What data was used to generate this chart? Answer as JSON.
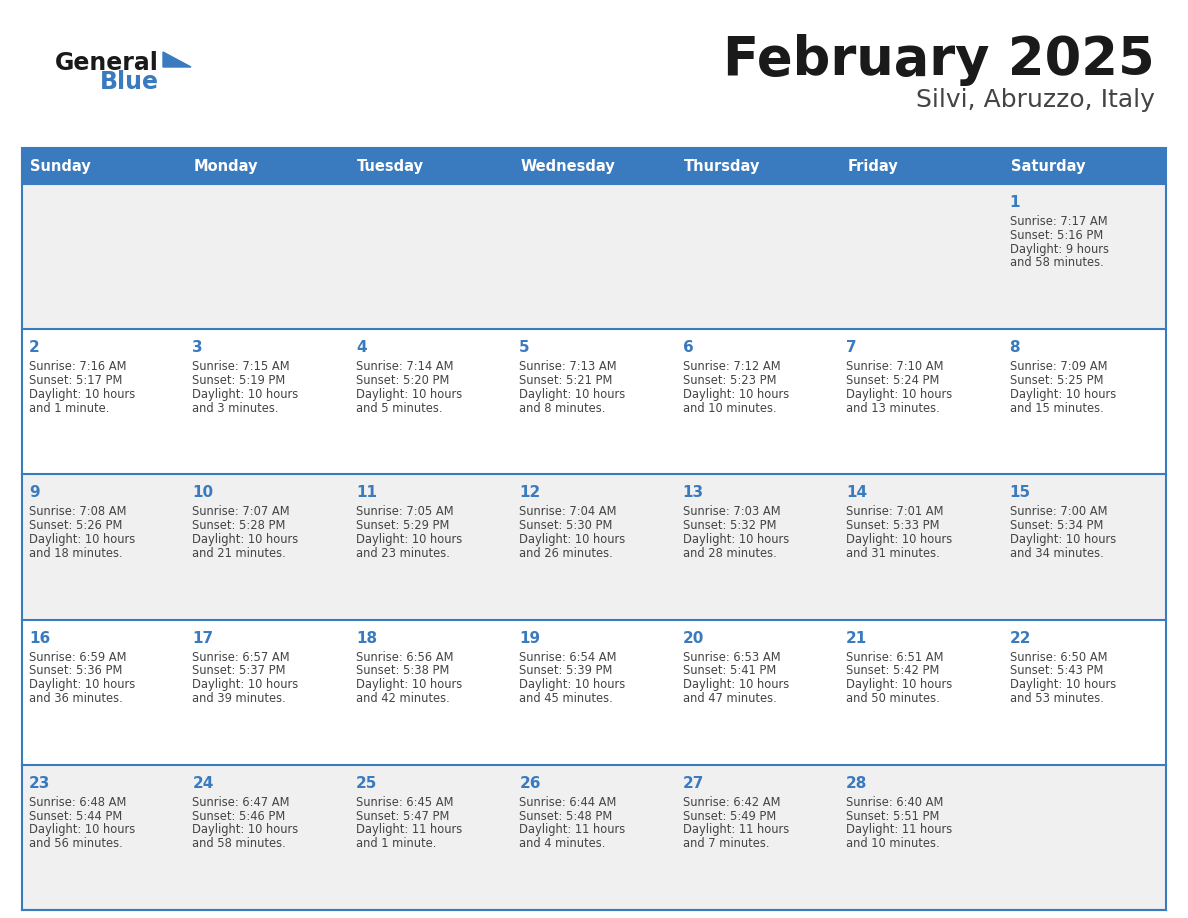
{
  "title": "February 2025",
  "subtitle": "Silvi, Abruzzo, Italy",
  "days_of_week": [
    "Sunday",
    "Monday",
    "Tuesday",
    "Wednesday",
    "Thursday",
    "Friday",
    "Saturday"
  ],
  "header_bg": "#3a7abf",
  "header_text_color": "#ffffff",
  "cell_border_color": "#3a7abf",
  "day_num_color": "#3a7abf",
  "cell_text_color": "#444444",
  "title_color": "#1a1a1a",
  "subtitle_color": "#444444",
  "logo_general_color": "#1a1a1a",
  "logo_blue_color": "#3a7abf",
  "row_bg_odd": "#f0f0f0",
  "row_bg_even": "#ffffff",
  "calendar_data": [
    [
      null,
      null,
      null,
      null,
      null,
      null,
      {
        "day": 1,
        "lines": [
          "Sunrise: 7:17 AM",
          "Sunset: 5:16 PM",
          "Daylight: 9 hours",
          "and 58 minutes."
        ]
      }
    ],
    [
      {
        "day": 2,
        "lines": [
          "Sunrise: 7:16 AM",
          "Sunset: 5:17 PM",
          "Daylight: 10 hours",
          "and 1 minute."
        ]
      },
      {
        "day": 3,
        "lines": [
          "Sunrise: 7:15 AM",
          "Sunset: 5:19 PM",
          "Daylight: 10 hours",
          "and 3 minutes."
        ]
      },
      {
        "day": 4,
        "lines": [
          "Sunrise: 7:14 AM",
          "Sunset: 5:20 PM",
          "Daylight: 10 hours",
          "and 5 minutes."
        ]
      },
      {
        "day": 5,
        "lines": [
          "Sunrise: 7:13 AM",
          "Sunset: 5:21 PM",
          "Daylight: 10 hours",
          "and 8 minutes."
        ]
      },
      {
        "day": 6,
        "lines": [
          "Sunrise: 7:12 AM",
          "Sunset: 5:23 PM",
          "Daylight: 10 hours",
          "and 10 minutes."
        ]
      },
      {
        "day": 7,
        "lines": [
          "Sunrise: 7:10 AM",
          "Sunset: 5:24 PM",
          "Daylight: 10 hours",
          "and 13 minutes."
        ]
      },
      {
        "day": 8,
        "lines": [
          "Sunrise: 7:09 AM",
          "Sunset: 5:25 PM",
          "Daylight: 10 hours",
          "and 15 minutes."
        ]
      }
    ],
    [
      {
        "day": 9,
        "lines": [
          "Sunrise: 7:08 AM",
          "Sunset: 5:26 PM",
          "Daylight: 10 hours",
          "and 18 minutes."
        ]
      },
      {
        "day": 10,
        "lines": [
          "Sunrise: 7:07 AM",
          "Sunset: 5:28 PM",
          "Daylight: 10 hours",
          "and 21 minutes."
        ]
      },
      {
        "day": 11,
        "lines": [
          "Sunrise: 7:05 AM",
          "Sunset: 5:29 PM",
          "Daylight: 10 hours",
          "and 23 minutes."
        ]
      },
      {
        "day": 12,
        "lines": [
          "Sunrise: 7:04 AM",
          "Sunset: 5:30 PM",
          "Daylight: 10 hours",
          "and 26 minutes."
        ]
      },
      {
        "day": 13,
        "lines": [
          "Sunrise: 7:03 AM",
          "Sunset: 5:32 PM",
          "Daylight: 10 hours",
          "and 28 minutes."
        ]
      },
      {
        "day": 14,
        "lines": [
          "Sunrise: 7:01 AM",
          "Sunset: 5:33 PM",
          "Daylight: 10 hours",
          "and 31 minutes."
        ]
      },
      {
        "day": 15,
        "lines": [
          "Sunrise: 7:00 AM",
          "Sunset: 5:34 PM",
          "Daylight: 10 hours",
          "and 34 minutes."
        ]
      }
    ],
    [
      {
        "day": 16,
        "lines": [
          "Sunrise: 6:59 AM",
          "Sunset: 5:36 PM",
          "Daylight: 10 hours",
          "and 36 minutes."
        ]
      },
      {
        "day": 17,
        "lines": [
          "Sunrise: 6:57 AM",
          "Sunset: 5:37 PM",
          "Daylight: 10 hours",
          "and 39 minutes."
        ]
      },
      {
        "day": 18,
        "lines": [
          "Sunrise: 6:56 AM",
          "Sunset: 5:38 PM",
          "Daylight: 10 hours",
          "and 42 minutes."
        ]
      },
      {
        "day": 19,
        "lines": [
          "Sunrise: 6:54 AM",
          "Sunset: 5:39 PM",
          "Daylight: 10 hours",
          "and 45 minutes."
        ]
      },
      {
        "day": 20,
        "lines": [
          "Sunrise: 6:53 AM",
          "Sunset: 5:41 PM",
          "Daylight: 10 hours",
          "and 47 minutes."
        ]
      },
      {
        "day": 21,
        "lines": [
          "Sunrise: 6:51 AM",
          "Sunset: 5:42 PM",
          "Daylight: 10 hours",
          "and 50 minutes."
        ]
      },
      {
        "day": 22,
        "lines": [
          "Sunrise: 6:50 AM",
          "Sunset: 5:43 PM",
          "Daylight: 10 hours",
          "and 53 minutes."
        ]
      }
    ],
    [
      {
        "day": 23,
        "lines": [
          "Sunrise: 6:48 AM",
          "Sunset: 5:44 PM",
          "Daylight: 10 hours",
          "and 56 minutes."
        ]
      },
      {
        "day": 24,
        "lines": [
          "Sunrise: 6:47 AM",
          "Sunset: 5:46 PM",
          "Daylight: 10 hours",
          "and 58 minutes."
        ]
      },
      {
        "day": 25,
        "lines": [
          "Sunrise: 6:45 AM",
          "Sunset: 5:47 PM",
          "Daylight: 11 hours",
          "and 1 minute."
        ]
      },
      {
        "day": 26,
        "lines": [
          "Sunrise: 6:44 AM",
          "Sunset: 5:48 PM",
          "Daylight: 11 hours",
          "and 4 minutes."
        ]
      },
      {
        "day": 27,
        "lines": [
          "Sunrise: 6:42 AM",
          "Sunset: 5:49 PM",
          "Daylight: 11 hours",
          "and 7 minutes."
        ]
      },
      {
        "day": 28,
        "lines": [
          "Sunrise: 6:40 AM",
          "Sunset: 5:51 PM",
          "Daylight: 11 hours",
          "and 10 minutes."
        ]
      },
      null
    ]
  ]
}
